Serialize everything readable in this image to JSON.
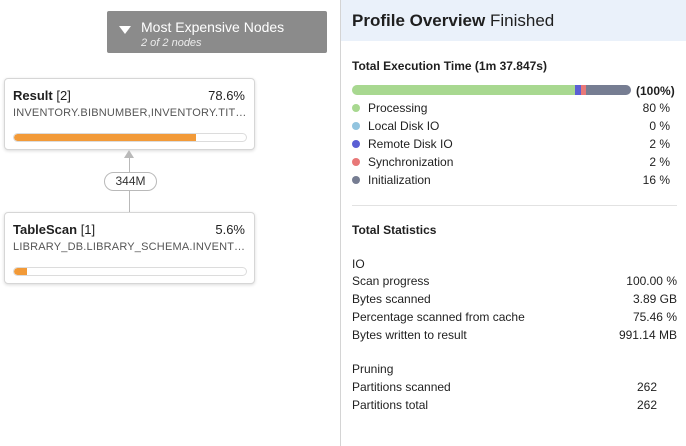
{
  "expensive_nodes": {
    "title": "Most Expensive Nodes",
    "subtitle": "2 of 2 nodes"
  },
  "nodes": [
    {
      "name": "Result",
      "index": "[2]",
      "percent": "78.6%",
      "detail": "INVENTORY.BIBNUMBER,INVENTORY.TITL...",
      "progress": 0.786
    },
    {
      "name": "TableScan",
      "index": "[1]",
      "percent": "5.6%",
      "detail": "LIBRARY_DB.LIBRARY_SCHEMA.INVENTORY",
      "progress": 0.056
    }
  ],
  "edge": {
    "rows": "344M"
  },
  "overview": {
    "title": "Profile Overview",
    "status": "Finished",
    "total_execution_label": "Total Execution Time (1m 37.847s)",
    "total_percent": "(100%)",
    "breakdown": [
      {
        "label": "Processing",
        "value": "80 %",
        "fraction": 0.8,
        "color": "#a8d890"
      },
      {
        "label": "Local Disk IO",
        "value": "0 %",
        "fraction": 0.0,
        "color": "#92c4df"
      },
      {
        "label": "Remote Disk IO",
        "value": "2 %",
        "fraction": 0.02,
        "color": "#5b5fd4"
      },
      {
        "label": "Synchronization",
        "value": "2 %",
        "fraction": 0.02,
        "color": "#e87878"
      },
      {
        "label": "Initialization",
        "value": "16 %",
        "fraction": 0.16,
        "color": "#767d92"
      }
    ],
    "total_statistics_label": "Total Statistics",
    "io": {
      "title": "IO",
      "rows": [
        {
          "label": "Scan progress",
          "value": "100.00 %"
        },
        {
          "label": "Bytes scanned",
          "value": "3.89 GB"
        },
        {
          "label": "Percentage scanned from cache",
          "value": "75.46 %"
        },
        {
          "label": "Bytes written to result",
          "value": "991.14 MB"
        }
      ]
    },
    "pruning": {
      "title": "Pruning",
      "rows": [
        {
          "label": "Partitions scanned",
          "value": "262"
        },
        {
          "label": "Partitions total",
          "value": "262"
        }
      ]
    }
  }
}
